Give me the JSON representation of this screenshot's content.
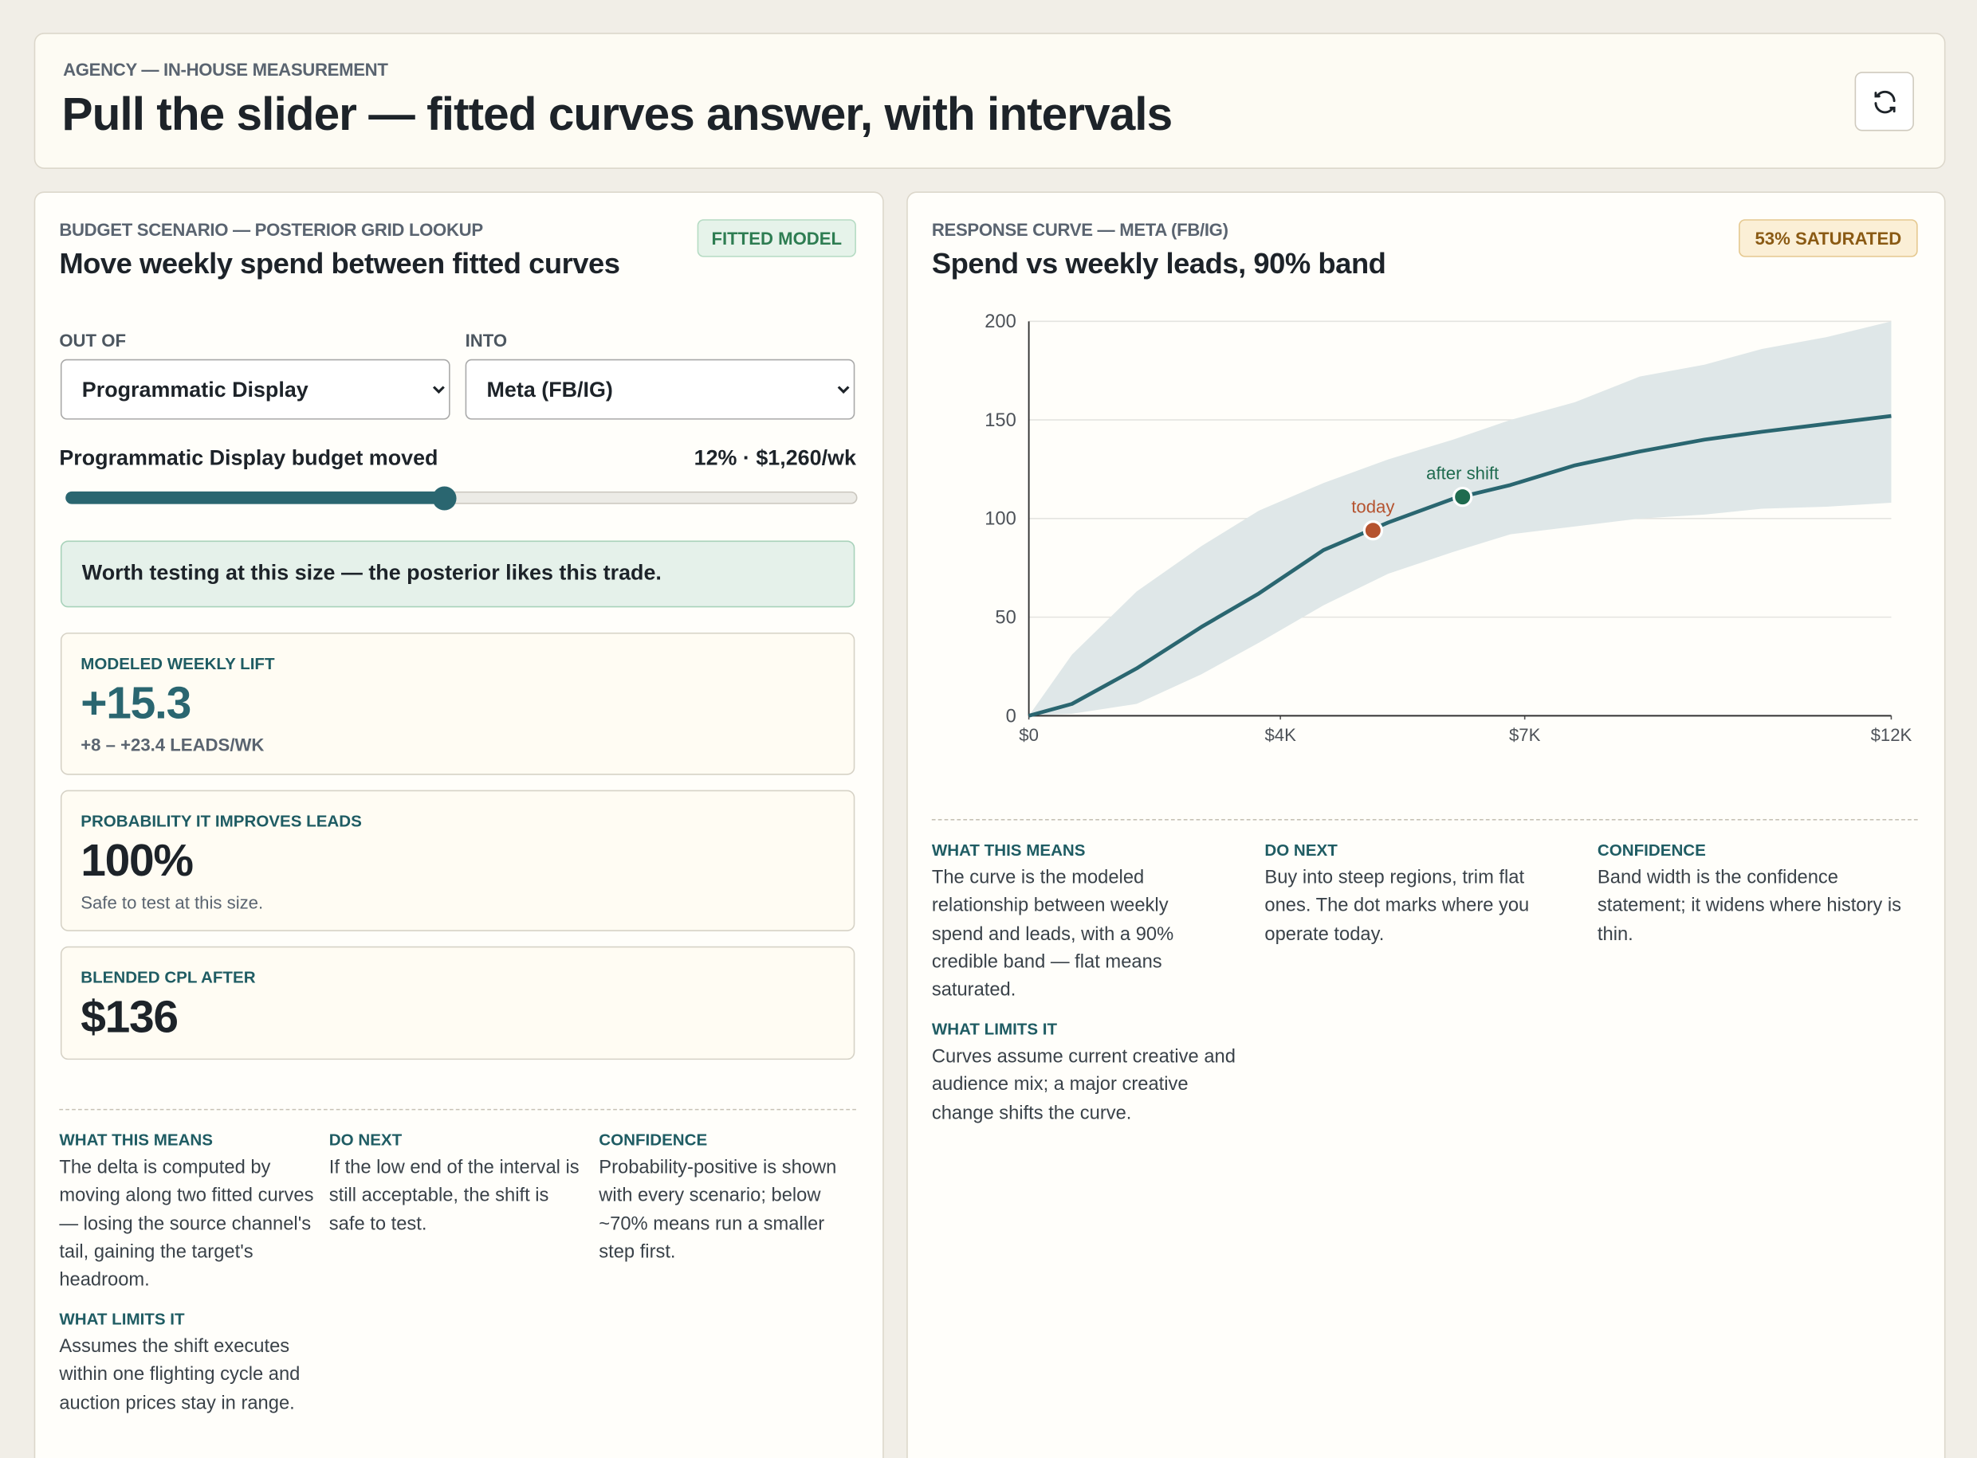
{
  "header": {
    "eyebrow": "AGENCY — IN-HOUSE MEASUREMENT",
    "title": "Pull the slider — fitted curves answer, with intervals"
  },
  "scenario": {
    "eyebrow": "BUDGET SCENARIO — POSTERIOR GRID LOOKUP",
    "badge": "FITTED MODEL",
    "title": "Move weekly spend between fitted curves",
    "out_of_label": "OUT OF",
    "into_label": "INTO",
    "out_of_option": "Programmatic Display",
    "into_option": "Meta (FB/IG)",
    "slider_label": "Programmatic Display budget moved",
    "slider_value": "12% · $1,260/wk",
    "verdict": "Worth testing at this size — the posterior likes this trade.",
    "metrics": [
      {
        "label": "MODELED WEEKLY LIFT",
        "value": "+15.3",
        "note": "+8 – +23.4 LEADS/WK"
      },
      {
        "label": "PROBABILITY IT IMPROVES LEADS",
        "value": "100%",
        "note": "Safe to test at this size."
      },
      {
        "label": "BLENDED CPL AFTER",
        "value": "$136"
      }
    ],
    "notes": [
      {
        "heading": "WHAT THIS MEANS",
        "text": "The delta is computed by moving along two fitted curves — losing the source channel's tail, gaining the target's headroom."
      },
      {
        "heading": "DO NEXT",
        "text": "If the low end of the interval is still acceptable, the shift is safe to test."
      },
      {
        "heading": "CONFIDENCE",
        "text": "Probability-positive is shown with every scenario; below ~70% means run a smaller step first."
      },
      {
        "heading": "WHAT LIMITS IT",
        "text": "Assumes the shift executes within one flighting cycle and auction prices stay in range."
      }
    ]
  },
  "curve_panel": {
    "eyebrow": "RESPONSE CURVE — META (FB/IG)",
    "badge": "53% SATURATED",
    "title": "Spend vs weekly leads, 90% band",
    "notes": [
      {
        "heading": "WHAT THIS MEANS",
        "text": "The curve is the modeled relationship between weekly spend and leads, with a 90% credible band — flat means saturated."
      },
      {
        "heading": "DO NEXT",
        "text": "Buy into steep regions, trim flat ones. The dot marks where you operate today."
      },
      {
        "heading": "CONFIDENCE",
        "text": "Band width is the confidence statement; it widens where history is thin."
      },
      {
        "heading": "WHAT LIMITS IT",
        "text": "Curves assume current creative and audience mix; a major creative change shifts the curve."
      }
    ]
  },
  "chart_data": {
    "type": "line",
    "x": [
      0,
      600,
      1500,
      2400,
      3200,
      4100,
      5000,
      5900,
      6700,
      7600,
      8500,
      9400,
      10200,
      11100,
      12000
    ],
    "values": [
      0,
      6,
      24,
      45,
      62,
      84,
      98,
      110,
      117,
      127,
      134,
      140,
      144,
      148,
      152
    ],
    "upper": [
      0,
      31,
      63,
      86,
      104,
      118,
      130,
      140,
      150,
      159,
      172,
      178,
      186,
      192,
      200
    ],
    "lower": [
      0,
      1,
      6,
      21,
      37,
      56,
      72,
      83,
      92,
      96,
      100,
      102,
      105,
      106,
      108
    ],
    "color": "#2a6670",
    "band_color": "#dfe7e8",
    "points": [
      {
        "label": "today",
        "x": 4789,
        "y": 94,
        "color": "#b5532f"
      },
      {
        "label": "after shift",
        "x": 6035,
        "y": 111,
        "color": "#1f6b4f"
      }
    ],
    "xlim": [
      0,
      12000
    ],
    "ylim": [
      0,
      200
    ],
    "xticks": [
      {
        "value": 0,
        "label": "$0"
      },
      {
        "value": 3500,
        "label": "$4K"
      },
      {
        "value": 6900,
        "label": "$7K"
      },
      {
        "value": 12000,
        "label": "$12K"
      }
    ],
    "yticks": [
      0,
      50,
      100,
      150,
      200
    ],
    "grid": true
  }
}
